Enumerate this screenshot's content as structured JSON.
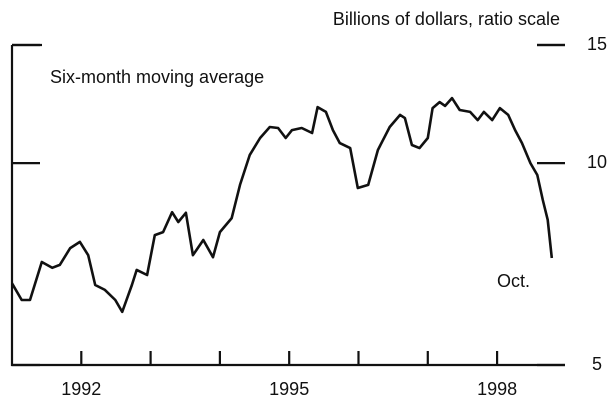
{
  "chart_data": {
    "type": "line",
    "subtitle": "Billions of dollars, ratio scale",
    "annotations": [
      "Six-month moving average",
      "Oct."
    ],
    "log_scale": true,
    "color": "#111111",
    "x": [
      1991.0,
      1991.14,
      1991.26,
      1991.43,
      1991.58,
      1991.69,
      1991.84,
      1991.98,
      1992.1,
      1992.2,
      1992.34,
      1992.49,
      1992.59,
      1992.73,
      1992.8,
      1992.95,
      1993.06,
      1993.18,
      1993.31,
      1993.4,
      1993.51,
      1993.61,
      1993.76,
      1993.9,
      1994.0,
      1994.17,
      1994.29,
      1994.43,
      1994.58,
      1994.72,
      1994.84,
      1994.95,
      1995.04,
      1995.18,
      1995.33,
      1995.41,
      1995.53,
      1995.63,
      1995.73,
      1995.88,
      1995.99,
      1996.14,
      1996.28,
      1996.45,
      1996.6,
      1996.67,
      1996.77,
      1996.88,
      1997.0,
      1997.07,
      1997.17,
      1997.25,
      1997.35,
      1997.46,
      1997.61,
      1997.72,
      1997.81,
      1997.93,
      1998.04,
      1998.16,
      1998.26,
      1998.36,
      1998.48,
      1998.58,
      1998.66,
      1998.73,
      1998.79
    ],
    "values": [
      6.62,
      6.25,
      6.25,
      7.12,
      6.98,
      7.05,
      7.47,
      7.63,
      7.29,
      6.58,
      6.47,
      6.25,
      6.0,
      6.58,
      6.93,
      6.81,
      7.81,
      7.89,
      8.45,
      8.17,
      8.43,
      7.29,
      7.68,
      7.24,
      7.89,
      8.28,
      9.28,
      10.28,
      10.9,
      11.32,
      11.28,
      10.9,
      11.2,
      11.28,
      11.09,
      12.12,
      11.92,
      11.2,
      10.71,
      10.53,
      9.18,
      9.28,
      10.46,
      11.32,
      11.8,
      11.67,
      10.64,
      10.53,
      10.9,
      12.08,
      12.33,
      12.17,
      12.5,
      12.0,
      11.92,
      11.59,
      11.92,
      11.59,
      12.08,
      11.8,
      11.2,
      10.71,
      10.0,
      9.6,
      8.81,
      8.23,
      7.22
    ],
    "xlim": [
      1991.0,
      1998.98
    ],
    "xticks": [
      1992,
      1995,
      1998
    ],
    "xminor_ticks": [
      1993,
      1994,
      1996,
      1997
    ],
    "ylim": [
      5,
      15
    ],
    "yticks": [
      5,
      10,
      15
    ]
  }
}
